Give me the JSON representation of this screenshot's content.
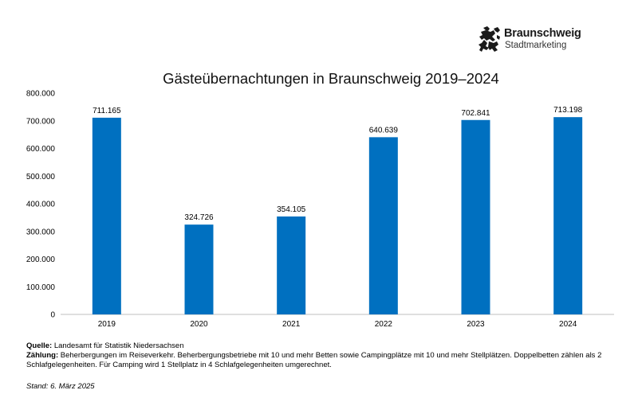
{
  "logo": {
    "name": "Braunschweig",
    "subtitle": "Stadtmarketing",
    "icon": "braunschweig-lion-icon",
    "color": "#1a1a1a"
  },
  "chart_data": {
    "type": "bar",
    "title": "Gästeübernachtungen in Braunschweig 2019–2024",
    "categories": [
      "2019",
      "2020",
      "2021",
      "2022",
      "2023",
      "2024"
    ],
    "values": [
      711165,
      324726,
      354105,
      640639,
      702841,
      713198
    ],
    "value_labels": [
      "711.165",
      "324.726",
      "354.105",
      "640.639",
      "702.841",
      "713.198"
    ],
    "ylim": [
      0,
      800000
    ],
    "yticks": [
      0,
      100000,
      200000,
      300000,
      400000,
      500000,
      600000,
      700000,
      800000
    ],
    "ytick_labels": [
      "0",
      "100.000",
      "200.000",
      "300.000",
      "400.000",
      "500.000",
      "600.000",
      "700.000",
      "800.000"
    ],
    "grid": false,
    "legend": "none",
    "bar_color": "#0070C0",
    "xlabel": "",
    "ylabel": ""
  },
  "notes": {
    "source_label": "Quelle:",
    "source_text": "Landesamt für Statistik Niedersachsen",
    "count_label": "Zählung:",
    "count_text": "Beherbergungen im Reiseverkehr. Beherbergungsbetriebe mit 10 und mehr Betten sowie Campingplätze mit 10 und mehr Stellplätzen. Doppelbetten zählen als 2 Schlafgelegenheiten. Für Camping wird 1 Stellplatz in 4 Schlafgelegenheiten umgerechnet.",
    "stand": "Stand: 6. März 2025"
  }
}
